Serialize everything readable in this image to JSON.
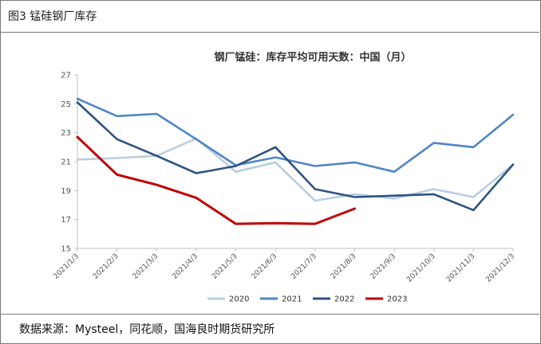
{
  "header": {
    "title": "图3  锰硅钢厂库存"
  },
  "footer": {
    "source": "数据来源：Mysteel，同花顺，国海良时期货研究所"
  },
  "chart_data": {
    "type": "line",
    "title": "钢厂锰硅：库存平均可用天数：中国（月）",
    "xlabel": "",
    "ylabel": "",
    "categories": [
      "2021/1/3",
      "2021/2/3",
      "2021/3/3",
      "2021/4/3",
      "2021/5/3",
      "2021/6/3",
      "2021/7/3",
      "2021/8/3",
      "2021/9/3",
      "2021/10/3",
      "2021/11/3",
      "2021/12/3"
    ],
    "y_ticks": [
      15,
      17,
      19,
      21,
      23,
      25,
      27
    ],
    "ylim": [
      15,
      27
    ],
    "grid": false,
    "legend_position": "bottom",
    "series": [
      {
        "name": "2020",
        "color": "#b8cde3",
        "values": [
          21.15,
          21.25,
          21.4,
          22.6,
          20.3,
          20.95,
          18.3,
          18.75,
          18.45,
          19.1,
          18.55,
          20.8
        ]
      },
      {
        "name": "2021",
        "color": "#4f86c6",
        "values": [
          25.35,
          24.15,
          24.3,
          22.55,
          20.75,
          21.3,
          20.7,
          20.95,
          20.3,
          22.3,
          22.0,
          24.25
        ]
      },
      {
        "name": "2022",
        "color": "#2e5382",
        "values": [
          25.1,
          22.55,
          21.4,
          20.2,
          20.7,
          22.0,
          19.1,
          18.55,
          18.65,
          18.75,
          17.65,
          20.8
        ]
      },
      {
        "name": "2023",
        "color": "#c00000",
        "values": [
          22.7,
          20.1,
          19.4,
          18.5,
          16.7,
          16.75,
          16.7,
          17.75,
          null,
          null,
          null,
          null
        ]
      }
    ]
  }
}
